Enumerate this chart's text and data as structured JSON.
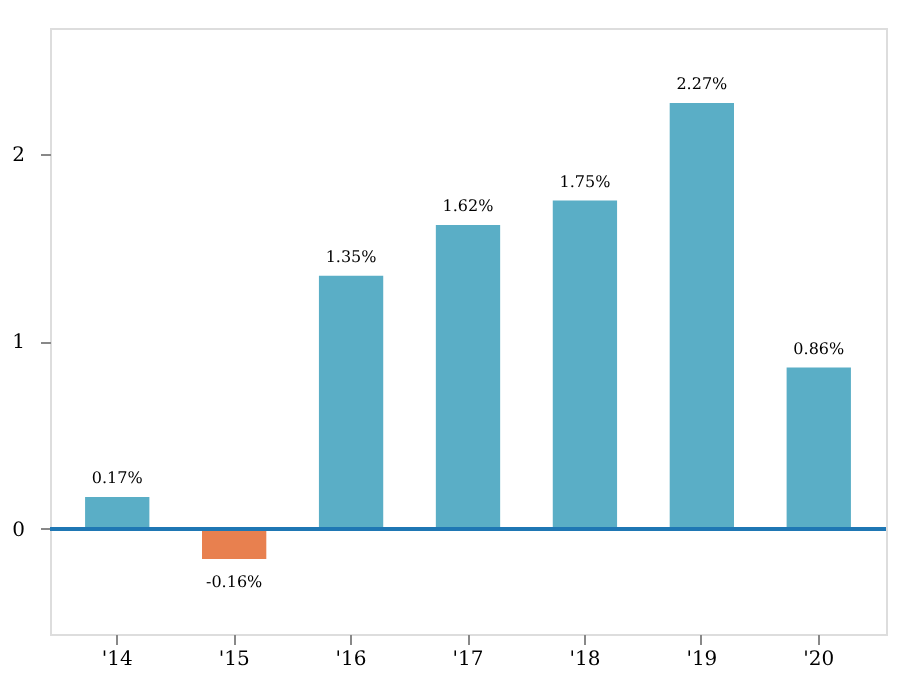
{
  "chart_data": {
    "type": "bar",
    "categories": [
      "'14",
      "'15",
      "'16",
      "'17",
      "'18",
      "'19",
      "'20"
    ],
    "values": [
      0.17,
      -0.16,
      1.35,
      1.62,
      1.75,
      2.27,
      0.86
    ],
    "colors": [
      "#5aaec6",
      "#e8804f",
      "#5aaec6",
      "#5aaec6",
      "#5aaec6",
      "#5aaec6",
      "#5aaec6"
    ],
    "value_labels": [
      "0.17%",
      "-0.16%",
      "1.35%",
      "1.62%",
      "1.75%",
      "2.27%",
      "0.86%"
    ],
    "ylim": [
      -0.56,
      2.67
    ],
    "yticks": [
      0,
      1,
      2
    ],
    "grid": false,
    "ref_lines": [
      {
        "axis": "y",
        "value": 0,
        "color": "#1f77b4"
      }
    ]
  }
}
